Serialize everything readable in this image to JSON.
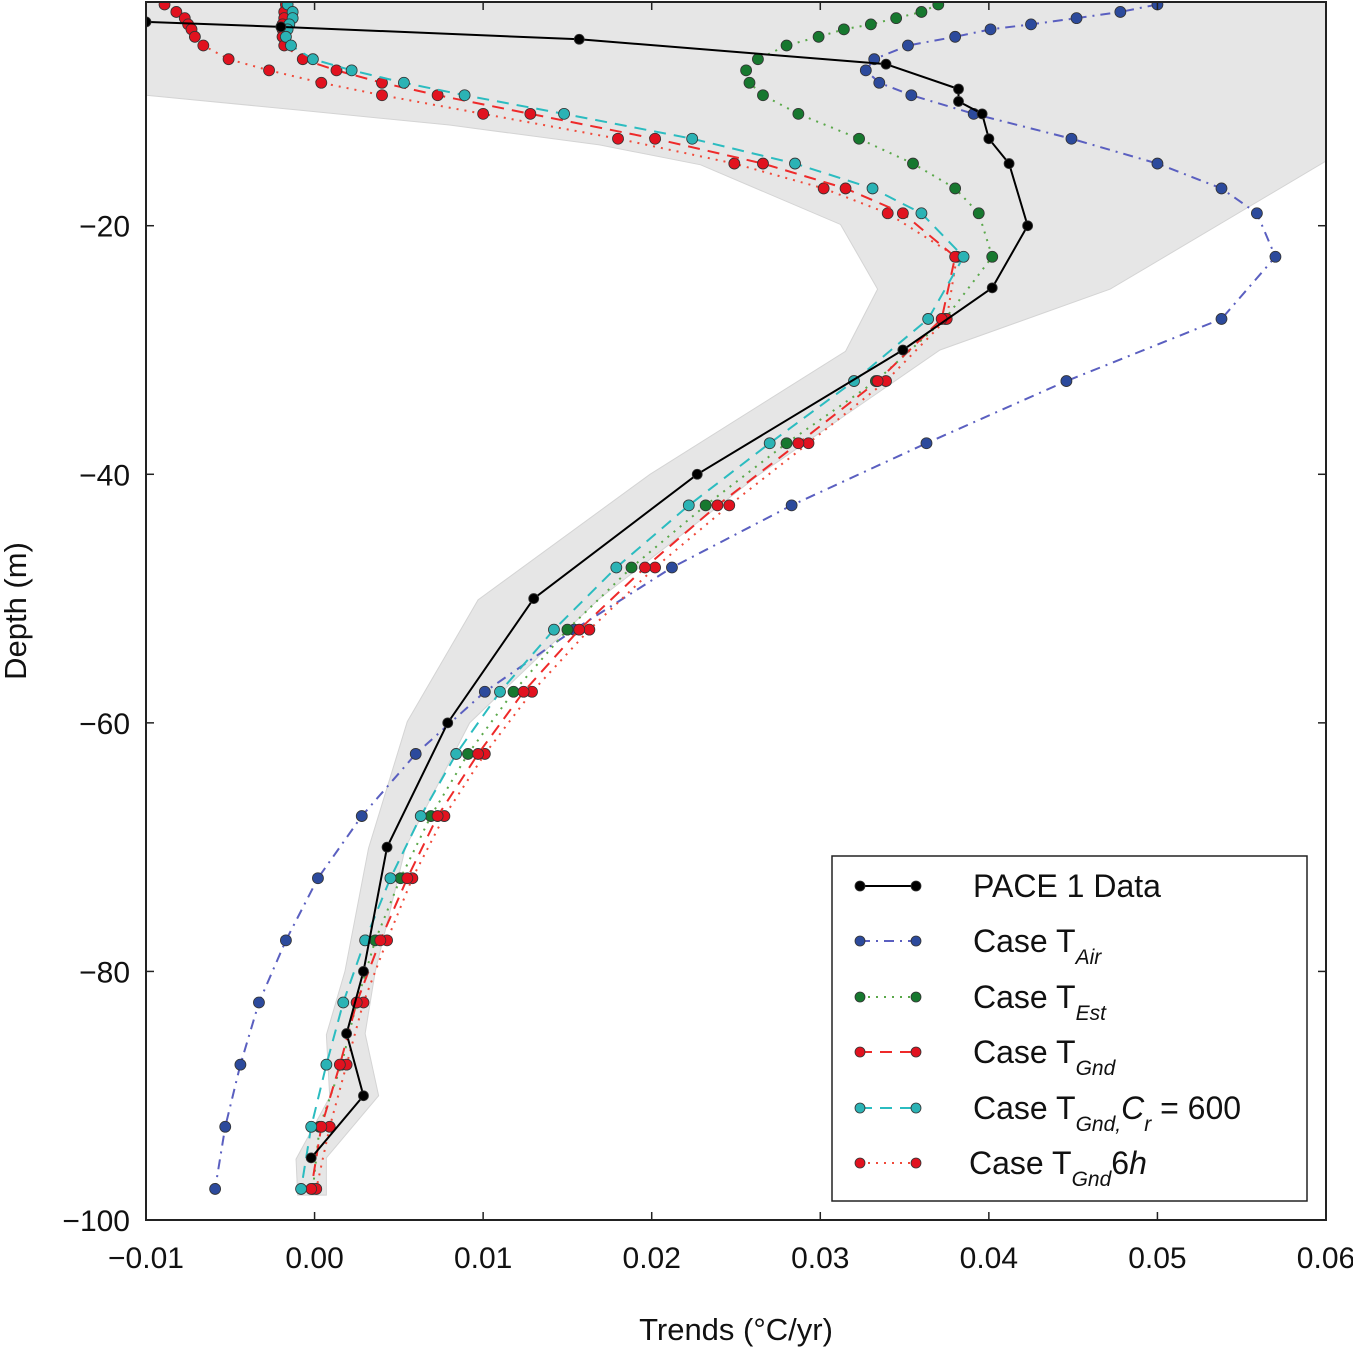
{
  "chart_data": {
    "type": "line",
    "title": "",
    "xlabel": "Trends (°C/yr)",
    "ylabel": "Depth (m)",
    "xlim": [
      -0.01,
      0.06
    ],
    "ylim": [
      -100,
      -2
    ],
    "grid": false,
    "legend_placement": "bottom-right",
    "x_ticks": [
      -0.01,
      0.0,
      0.01,
      0.02,
      0.03,
      0.04,
      0.05,
      0.06
    ],
    "x_tick_labels": [
      "−0.01",
      "0.00",
      "0.01",
      "0.02",
      "0.03",
      "0.04",
      "0.05",
      "0.06"
    ],
    "y_ticks": [
      -20,
      -40,
      -60,
      -80,
      -100
    ],
    "y_tick_labels": [
      "−20",
      "−40",
      "−60",
      "−80",
      "−100"
    ],
    "envelope": {
      "color": "#e6e6e6",
      "left": [
        [
          -9.5,
          -0.01
        ],
        [
          -10.7,
          -0.0009
        ],
        [
          -11.9,
          0.008
        ],
        [
          -13.5,
          0.0169
        ],
        [
          -15.1,
          0.0229
        ],
        [
          -19.9,
          0.0312
        ],
        [
          -25.1,
          0.0334
        ],
        [
          -30.1,
          0.0315
        ],
        [
          -40,
          0.0199
        ],
        [
          -50.1,
          0.0097
        ],
        [
          -59.9,
          0.0055
        ],
        [
          -70.1,
          0.0032
        ],
        [
          -80,
          0.0018
        ],
        [
          -85.1,
          0.0007
        ],
        [
          -90.1,
          0.0009
        ],
        [
          -95.1,
          -0.0011
        ],
        [
          -98,
          -0.001
        ]
      ],
      "right": [
        [
          -2,
          0.06
        ],
        [
          -14.8,
          0.06
        ],
        [
          -25.1,
          0.0472
        ],
        [
          -30,
          0.0371
        ],
        [
          -40,
          0.0264
        ],
        [
          -50,
          0.0169
        ],
        [
          -60,
          0.0092
        ],
        [
          -70,
          0.0054
        ],
        [
          -80,
          0.0036
        ],
        [
          -85,
          0.003
        ],
        [
          -90,
          0.0038
        ],
        [
          -95,
          0.0007
        ],
        [
          -98,
          0.0007
        ]
      ]
    },
    "model_depths": [
      -2.2,
      -2.8,
      -3.3,
      -3.8,
      -4.2,
      -4.8,
      -5.5,
      -6.6,
      -7.5,
      -8.5,
      -9.5,
      -11,
      -13,
      -15,
      -17,
      -19,
      -22.5,
      -27.5,
      -32.5,
      -37.5,
      -42.5,
      -47.5,
      -52.5,
      -57.5,
      -62.5,
      -67.5,
      -72.5,
      -77.5,
      -82.5,
      -87.5,
      -92.5,
      -97.5
    ],
    "series": [
      {
        "name": "PACE 1 Data",
        "color": "#000000",
        "line_color": "#000000",
        "style": "solid",
        "depths": [
          -3.6,
          -4,
          -5,
          -7,
          -9,
          -10,
          -11,
          -13,
          -15,
          -20,
          -25,
          -30,
          -40,
          -50,
          -60,
          -70,
          -80,
          -85,
          -90,
          -95
        ],
        "values": [
          -0.01,
          -0.002,
          0.0157,
          0.0339,
          0.0382,
          0.0382,
          0.0396,
          0.04,
          0.0412,
          0.0423,
          0.0402,
          0.0349,
          0.0227,
          0.013,
          0.0079,
          0.0043,
          0.0029,
          0.0019,
          0.0029,
          -0.0002
        ]
      },
      {
        "name": "Case T_Air",
        "color": "#2c4a9c",
        "line_color": "#5a5fc0",
        "style": "dashdot",
        "values": [
          0.05,
          0.0478,
          0.0452,
          0.0425,
          0.0401,
          0.038,
          0.0352,
          0.0332,
          0.0327,
          0.0335,
          0.0354,
          0.0391,
          0.0449,
          0.05,
          0.0538,
          0.0559,
          0.057,
          0.0538,
          0.0446,
          0.0363,
          0.0283,
          0.0212,
          0.0154,
          0.0101,
          0.006,
          0.0028,
          0.0002,
          -0.0017,
          -0.0033,
          -0.0044,
          -0.0053,
          -0.0059
        ]
      },
      {
        "name": "Case T_Est",
        "color": "#17782f",
        "line_color": "#5aa84a",
        "style": "dotted",
        "values": [
          0.037,
          0.036,
          0.0345,
          0.033,
          0.0314,
          0.0299,
          0.028,
          0.0263,
          0.0256,
          0.0258,
          0.0266,
          0.0287,
          0.0323,
          0.0355,
          0.038,
          0.0394,
          0.0402,
          0.0374,
          0.0333,
          0.028,
          0.0232,
          0.0188,
          0.015,
          0.0118,
          0.0091,
          0.0069,
          0.0051,
          0.0036,
          0.0025,
          0.0016,
          0.0003,
          -0.0001
        ]
      },
      {
        "name": "Case T_Gnd",
        "color": "#e1121f",
        "line_color": "#ee2a2a",
        "style": "dashed",
        "values": [
          -0.0017,
          -0.0018,
          -0.0018,
          -0.0019,
          -0.0019,
          -0.0019,
          -0.0018,
          -0.0007,
          0.0013,
          0.004,
          0.0073,
          0.0128,
          0.0202,
          0.0266,
          0.0315,
          0.0349,
          0.038,
          0.0372,
          0.0334,
          0.0287,
          0.0239,
          0.0196,
          0.0157,
          0.0124,
          0.0097,
          0.0073,
          0.0055,
          0.0039,
          0.0025,
          0.0015,
          0.0004,
          -0.0002
        ]
      },
      {
        "name": "Case T_Gnd, C_r = 600",
        "color": "#2bb3b5",
        "line_color": "#2bbcc0",
        "style": "dashed",
        "values": [
          -0.0016,
          -0.0013,
          -0.0013,
          -0.0015,
          -0.0016,
          -0.0017,
          -0.0014,
          -0.0001,
          0.0022,
          0.0053,
          0.0089,
          0.0148,
          0.0224,
          0.0285,
          0.0331,
          0.036,
          0.0385,
          0.0364,
          0.032,
          0.027,
          0.0222,
          0.0179,
          0.0142,
          0.011,
          0.0084,
          0.0063,
          0.0045,
          0.003,
          0.0017,
          0.0007,
          -0.0002,
          -0.0008
        ]
      },
      {
        "name": "Case T_Gnd 6h",
        "color": "#e1121f",
        "line_color": "#f04a3a",
        "style": "dotted",
        "values": [
          -0.0089,
          -0.0082,
          -0.0077,
          -0.0075,
          -0.0073,
          -0.0071,
          -0.0066,
          -0.0051,
          -0.0027,
          0.0004,
          0.004,
          0.01,
          0.018,
          0.0249,
          0.0302,
          0.034,
          0.0381,
          0.0375,
          0.0339,
          0.0293,
          0.0246,
          0.0202,
          0.0163,
          0.0129,
          0.0101,
          0.0077,
          0.0058,
          0.0043,
          0.0029,
          0.0019,
          0.0009,
          0.0001
        ]
      }
    ],
    "legend": [
      {
        "parts": [
          {
            "t": "PACE 1 Data",
            "k": "n"
          }
        ]
      },
      {
        "parts": [
          {
            "t": "Case T",
            "k": "n"
          },
          {
            "t": "Air",
            "k": "sub"
          }
        ]
      },
      {
        "parts": [
          {
            "t": "Case T",
            "k": "n"
          },
          {
            "t": "Est",
            "k": "sub"
          }
        ]
      },
      {
        "parts": [
          {
            "t": "Case T",
            "k": "n"
          },
          {
            "t": "Gnd",
            "k": "sub"
          }
        ]
      },
      {
        "parts": [
          {
            "t": "Case T",
            "k": "n"
          },
          {
            "t": "Gnd,",
            "k": "sub"
          },
          {
            "t": "C",
            "k": "it"
          },
          {
            "t": "r",
            "k": "sub"
          },
          {
            "t": " = 600",
            "k": "n"
          }
        ]
      },
      {
        "parts": [
          {
            "t": "Case T",
            "k": "n"
          },
          {
            "t": "Gnd",
            "k": "sub"
          },
          {
            "t": "6",
            "k": "n"
          },
          {
            "t": "h",
            "k": "it"
          }
        ]
      }
    ]
  }
}
